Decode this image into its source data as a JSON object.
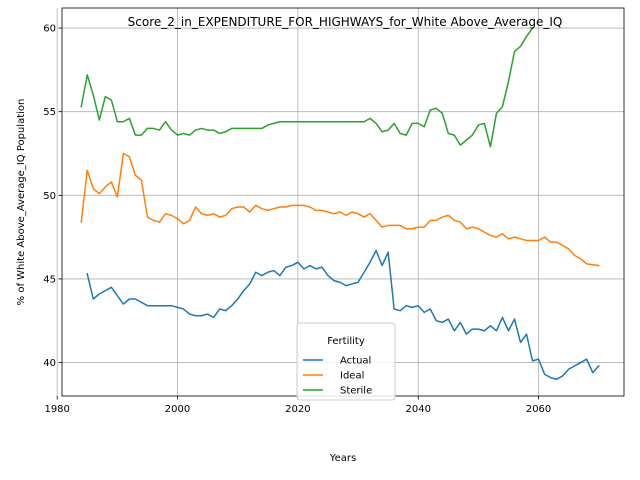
{
  "chart_data": {
    "type": "line",
    "title": "Score_2_in_EXPENDITURE_FOR_HIGHWAYS_for_White Above_Average_IQ",
    "xlabel": "Years",
    "ylabel": "% of White Above_Average_IQ Population",
    "xlim": [
      1980.8,
      2074.2
    ],
    "ylim": [
      38.0,
      61.2
    ],
    "xticks": [
      1980,
      2000,
      2020,
      2040,
      2060
    ],
    "yticks": [
      40,
      45,
      50,
      55,
      60
    ],
    "grid": true,
    "legend": {
      "title": "Fertility",
      "placement": "lower center",
      "entries": [
        "Actual",
        "Ideal",
        "Sterile"
      ]
    },
    "series": [
      {
        "name": "Actual",
        "color": "#1f77b4",
        "x": [
          1985,
          1986,
          1987,
          1988,
          1989,
          1990,
          1991,
          1992,
          1993,
          1994,
          1995,
          1996,
          1997,
          1998,
          1999,
          2000,
          2001,
          2002,
          2003,
          2004,
          2005,
          2006,
          2007,
          2008,
          2009,
          2010,
          2011,
          2012,
          2013,
          2014,
          2015,
          2016,
          2017,
          2018,
          2019,
          2020,
          2021,
          2022,
          2023,
          2024,
          2025,
          2026,
          2027,
          2028,
          2029,
          2030,
          2031,
          2032,
          2033,
          2034,
          2035,
          2036,
          2037,
          2038,
          2039,
          2040,
          2041,
          2042,
          2043,
          2044,
          2045,
          2046,
          2047,
          2048,
          2049,
          2050,
          2051,
          2052,
          2053,
          2054,
          2055,
          2056,
          2057,
          2058,
          2059,
          2060,
          2061,
          2062,
          2063,
          2064,
          2065,
          2066,
          2067,
          2068,
          2069,
          2070
        ],
        "values": [
          45.3,
          43.8,
          44.1,
          44.3,
          44.5,
          44.0,
          43.5,
          43.8,
          43.8,
          43.6,
          43.4,
          43.4,
          43.4,
          43.4,
          43.4,
          43.3,
          43.2,
          42.9,
          42.8,
          42.8,
          42.9,
          42.7,
          43.2,
          43.1,
          43.4,
          43.8,
          44.3,
          44.7,
          45.4,
          45.2,
          45.4,
          45.5,
          45.2,
          45.7,
          45.8,
          46.0,
          45.6,
          45.8,
          45.6,
          45.7,
          45.2,
          44.9,
          44.8,
          44.6,
          44.7,
          44.8,
          45.4,
          46.0,
          46.7,
          45.8,
          46.6,
          43.2,
          43.1,
          43.4,
          43.3,
          43.4,
          43.0,
          43.2,
          42.5,
          42.4,
          42.6,
          41.9,
          42.4,
          41.7,
          42.0,
          42.0,
          41.9,
          42.2,
          41.9,
          42.7,
          41.9,
          42.6,
          41.2,
          41.7,
          40.1,
          40.2,
          39.3,
          39.1,
          39.0,
          39.2,
          39.6,
          39.8,
          40.0,
          40.2,
          39.4,
          39.8
        ]
      },
      {
        "name": "Ideal",
        "color": "#ff7f0e",
        "x": [
          1984,
          1985,
          1986,
          1987,
          1988,
          1989,
          1990,
          1991,
          1992,
          1993,
          1994,
          1995,
          1996,
          1997,
          1998,
          1999,
          2000,
          2001,
          2002,
          2003,
          2004,
          2005,
          2006,
          2007,
          2008,
          2009,
          2010,
          2011,
          2012,
          2013,
          2014,
          2015,
          2016,
          2017,
          2018,
          2019,
          2020,
          2021,
          2022,
          2023,
          2024,
          2025,
          2026,
          2027,
          2028,
          2029,
          2030,
          2031,
          2032,
          2033,
          2034,
          2035,
          2036,
          2037,
          2038,
          2039,
          2040,
          2041,
          2042,
          2043,
          2044,
          2045,
          2046,
          2047,
          2048,
          2049,
          2050,
          2051,
          2052,
          2053,
          2054,
          2055,
          2056,
          2057,
          2058,
          2059,
          2060,
          2061,
          2062,
          2063,
          2064,
          2065,
          2066,
          2067,
          2068,
          2070
        ],
        "values": [
          48.4,
          51.5,
          50.4,
          50.1,
          50.5,
          50.8,
          49.9,
          52.5,
          52.3,
          51.2,
          50.9,
          48.7,
          48.5,
          48.4,
          48.9,
          48.8,
          48.6,
          48.3,
          48.5,
          49.3,
          48.9,
          48.8,
          48.9,
          48.7,
          48.8,
          49.2,
          49.3,
          49.3,
          49.0,
          49.4,
          49.2,
          49.1,
          49.2,
          49.3,
          49.3,
          49.4,
          49.4,
          49.4,
          49.3,
          49.1,
          49.1,
          49.0,
          48.9,
          49.0,
          48.8,
          49.0,
          48.9,
          48.7,
          48.9,
          48.5,
          48.1,
          48.2,
          48.2,
          48.2,
          48.0,
          48.0,
          48.1,
          48.1,
          48.5,
          48.5,
          48.7,
          48.8,
          48.5,
          48.4,
          48.0,
          48.1,
          48.0,
          47.8,
          47.6,
          47.5,
          47.7,
          47.4,
          47.5,
          47.4,
          47.3,
          47.3,
          47.3,
          47.5,
          47.2,
          47.2,
          47.0,
          46.8,
          46.4,
          46.2,
          45.9,
          45.8
        ]
      },
      {
        "name": "Sterile",
        "color": "#2ca02c",
        "x": [
          1984,
          1985,
          1986,
          1987,
          1988,
          1989,
          1990,
          1991,
          1992,
          1993,
          1994,
          1995,
          1996,
          1997,
          1998,
          1999,
          2000,
          2001,
          2002,
          2003,
          2004,
          2005,
          2006,
          2007,
          2008,
          2009,
          2010,
          2011,
          2012,
          2013,
          2014,
          2015,
          2016,
          2017,
          2018,
          2019,
          2020,
          2021,
          2022,
          2023,
          2024,
          2025,
          2026,
          2027,
          2028,
          2029,
          2030,
          2031,
          2032,
          2033,
          2034,
          2035,
          2036,
          2037,
          2038,
          2039,
          2040,
          2041,
          2042,
          2043,
          2044,
          2045,
          2046,
          2047,
          2048,
          2049,
          2050,
          2051,
          2052,
          2053,
          2054,
          2055,
          2056,
          2057,
          2058,
          2059
        ],
        "values": [
          55.3,
          57.2,
          56.0,
          54.5,
          55.9,
          55.7,
          54.4,
          54.4,
          54.6,
          53.6,
          53.6,
          54.0,
          54.0,
          53.9,
          54.4,
          53.9,
          53.6,
          53.7,
          53.6,
          53.9,
          54.0,
          53.9,
          53.9,
          53.7,
          53.8,
          54.0,
          54.0,
          54.0,
          54.0,
          54.0,
          54.0,
          54.2,
          54.3,
          54.4,
          54.4,
          54.4,
          54.4,
          54.4,
          54.4,
          54.4,
          54.4,
          54.4,
          54.4,
          54.4,
          54.4,
          54.4,
          54.4,
          54.4,
          54.6,
          54.3,
          53.8,
          53.9,
          54.3,
          53.7,
          53.6,
          54.3,
          54.3,
          54.1,
          55.1,
          55.2,
          54.9,
          53.7,
          53.6,
          53.0,
          53.3,
          53.6,
          54.2,
          54.3,
          52.9,
          54.9,
          55.3,
          56.8,
          58.6,
          58.9,
          59.5,
          60.0
        ]
      }
    ]
  }
}
